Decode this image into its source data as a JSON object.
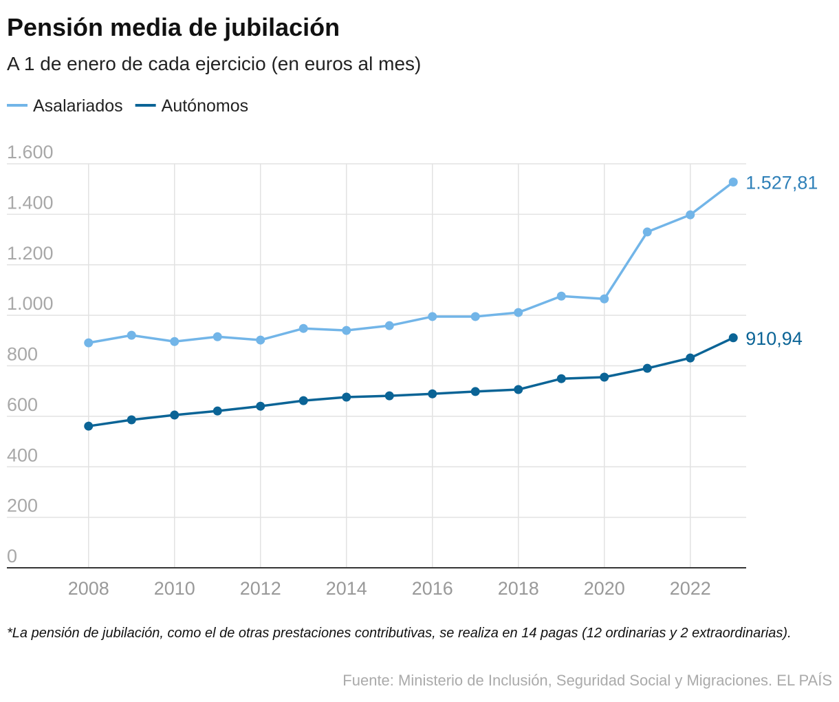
{
  "chart_data": {
    "type": "line",
    "title": "Pensión media de jubilación",
    "subtitle": "A 1 de enero de cada ejercicio (en euros al mes)",
    "x": [
      2008,
      2009,
      2010,
      2011,
      2012,
      2013,
      2014,
      2015,
      2016,
      2017,
      2018,
      2019,
      2020,
      2021,
      2022,
      2023
    ],
    "series": [
      {
        "name": "Asalariados",
        "color": "#72b5e8",
        "values": [
          891,
          921,
          896,
          915,
          902,
          948,
          940,
          959,
          995,
          995,
          1011,
          1076,
          1065,
          1330,
          1398,
          1527.81
        ],
        "value_labels": [
          null,
          null,
          null,
          null,
          null,
          null,
          null,
          null,
          null,
          null,
          null,
          null,
          null,
          null,
          null,
          "1.527,81"
        ]
      },
      {
        "name": "Autónomos",
        "color": "#0b6496",
        "values": [
          561,
          586,
          605,
          621,
          640,
          662,
          676,
          681,
          689,
          698,
          706,
          749,
          755,
          790,
          831,
          910.94
        ],
        "value_labels": [
          null,
          null,
          null,
          null,
          null,
          null,
          null,
          null,
          null,
          null,
          null,
          null,
          null,
          null,
          null,
          "910,94"
        ]
      }
    ],
    "xlim": [
      2006.1,
      2023.3
    ],
    "xticks": [
      2008,
      2010,
      2012,
      2014,
      2016,
      2018,
      2020,
      2022
    ],
    "ylim": [
      0,
      1600
    ],
    "yticks": [
      0,
      200,
      400,
      600,
      800,
      {
        "value": 1000,
        "label": "1.000"
      },
      {
        "value": 1200,
        "label": "1.200"
      },
      {
        "value": 1400,
        "label": "1.400"
      },
      {
        "value": 1600,
        "label": "1.600"
      }
    ],
    "grid": true,
    "legend": "top-left",
    "note": "*La pensión de jubilación, como el de otras prestaciones contributivas, se realiza en 14 pagas (12 ordinarias y 2 extraordinarias).",
    "source": "Fuente: Ministerio de Inclusión, Seguridad Social y Migraciones. EL PAÍS"
  }
}
